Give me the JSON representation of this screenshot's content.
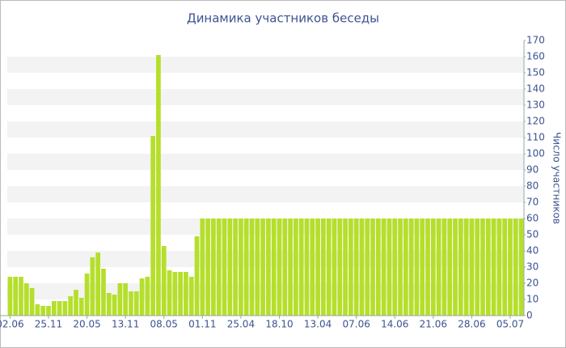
{
  "chart_data": {
    "type": "bar",
    "title": "Динамика участников беседы",
    "y_label": "Число участников",
    "categories": [
      "02.06",
      null,
      null,
      null,
      null,
      null,
      null,
      "25.11",
      null,
      null,
      null,
      null,
      null,
      null,
      "20.05",
      null,
      null,
      null,
      null,
      null,
      null,
      "13.11",
      null,
      null,
      null,
      null,
      null,
      null,
      "08.05",
      null,
      null,
      null,
      null,
      null,
      null,
      "01.11",
      null,
      null,
      null,
      null,
      null,
      null,
      "25.04",
      null,
      null,
      null,
      null,
      null,
      null,
      "18.10",
      null,
      null,
      null,
      null,
      null,
      null,
      "13.04",
      null,
      null,
      null,
      null,
      null,
      null,
      "07.06",
      null,
      null,
      null,
      null,
      null,
      null,
      "14.06",
      null,
      null,
      null,
      null,
      null,
      null,
      "21.06",
      null,
      null,
      null,
      null,
      null,
      null,
      "28.06",
      null,
      null,
      null,
      null,
      null,
      null,
      "05.07",
      null,
      null
    ],
    "values": [
      24,
      24,
      24,
      20,
      17,
      7,
      6,
      6,
      9,
      9,
      9,
      12,
      16,
      11,
      26,
      36,
      39,
      29,
      14,
      13,
      20,
      20,
      15,
      15,
      23,
      24,
      111,
      161,
      43,
      28,
      27,
      27,
      27,
      24,
      49,
      60,
      60,
      60,
      60,
      60,
      60,
      60,
      60,
      60,
      60,
      60,
      60,
      60,
      60,
      60,
      60,
      60,
      60,
      60,
      60,
      60,
      60,
      60,
      60,
      60,
      60,
      60,
      60,
      60,
      60,
      60,
      60,
      60,
      60,
      60,
      60,
      60,
      60,
      60,
      60,
      60,
      60,
      60,
      60,
      60,
      60,
      60,
      60,
      60,
      60,
      60,
      60,
      60,
      60,
      60,
      60,
      60,
      60,
      60
    ],
    "color": "#b5df2b",
    "ylim": [
      0,
      170
    ],
    "yticks": [
      0,
      10,
      20,
      30,
      40,
      50,
      60,
      70,
      80,
      90,
      100,
      110,
      120,
      130,
      140,
      150,
      160,
      170
    ],
    "grid": true
  }
}
